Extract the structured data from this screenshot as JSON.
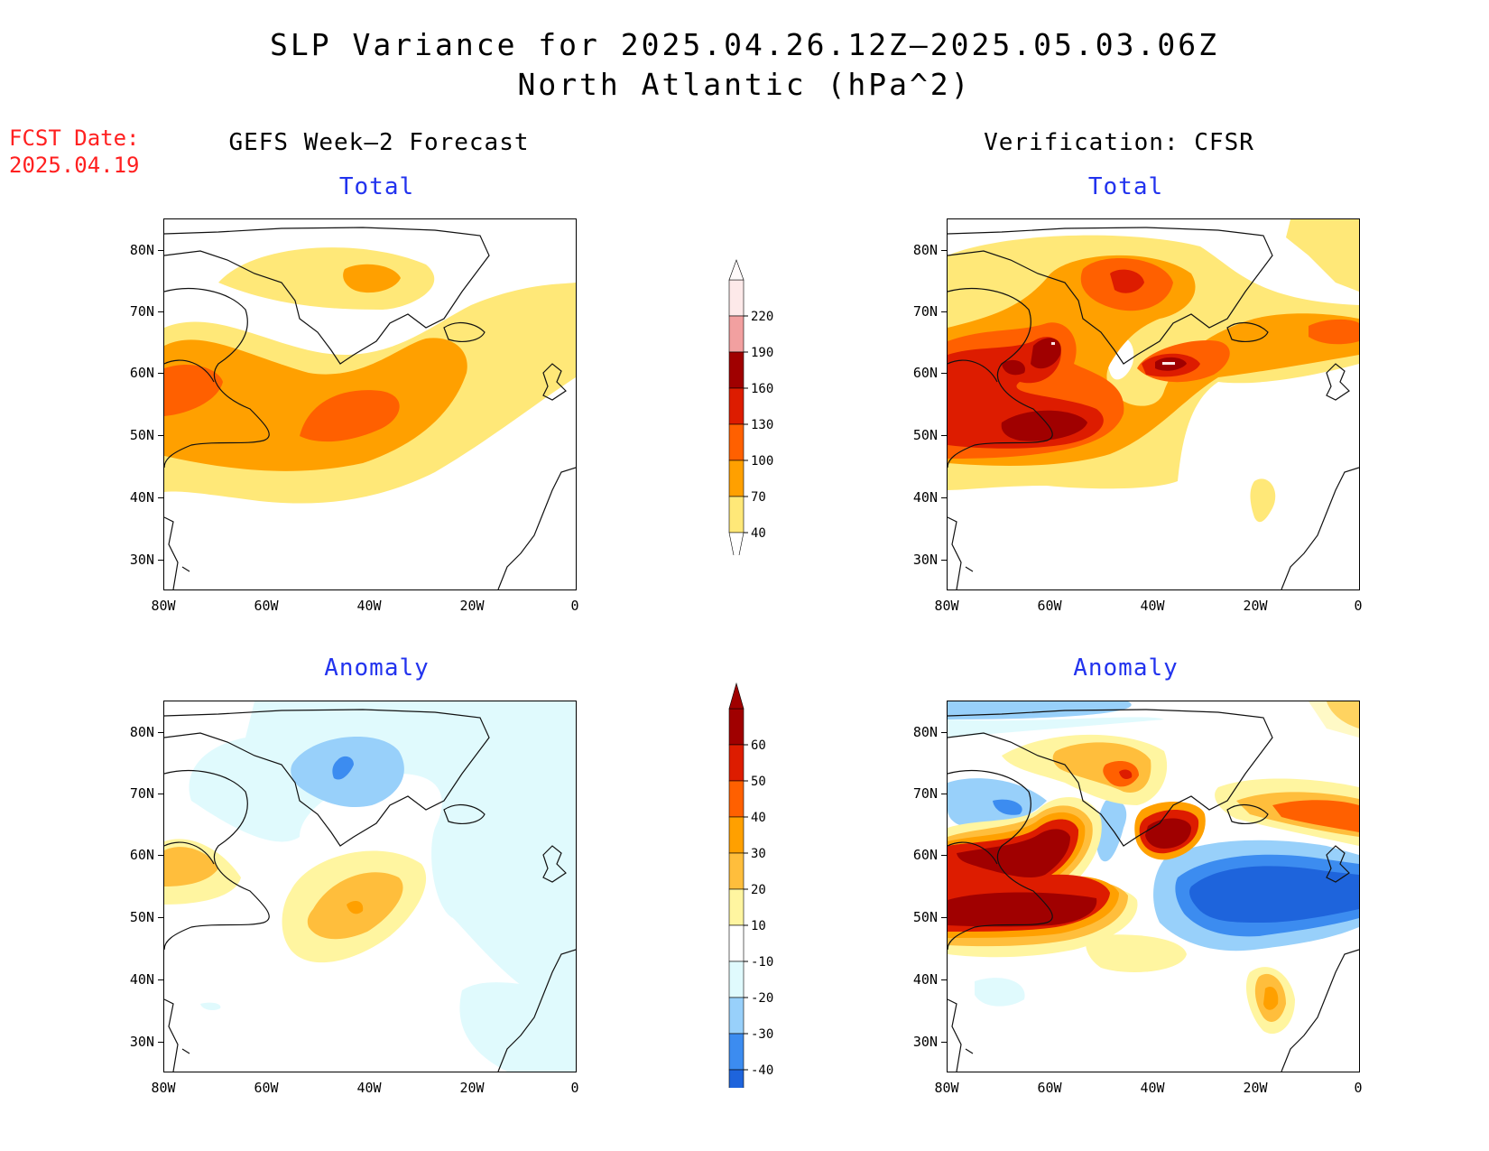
{
  "title": {
    "line1": "SLP Variance for 2025.04.26.12Z–2025.05.03.06Z",
    "line2": "North Atlantic (hPa^2)"
  },
  "forecast_date": {
    "label": "FCST Date:",
    "value": "2025.04.19"
  },
  "columns": {
    "left": "GEFS Week–2 Forecast",
    "right": "Verification: CFSR"
  },
  "panels": {
    "top_left": "Total",
    "top_right": "Total",
    "bottom_left": "Anomaly",
    "bottom_right": "Anomaly"
  },
  "axes": {
    "lat_labels": [
      "80N",
      "70N",
      "60N",
      "50N",
      "40N",
      "30N"
    ],
    "lon_labels": [
      "80W",
      "60W",
      "40W",
      "20W",
      "0"
    ]
  },
  "colorbars": {
    "total": {
      "levels": [
        "220",
        "190",
        "160",
        "130",
        "100",
        "70",
        "40"
      ],
      "colors": [
        "#fde9e9",
        "#f2a0a0",
        "#a00000",
        "#dd1c00",
        "#ff6000",
        "#ffa000",
        "#ffe878"
      ]
    },
    "anomaly": {
      "levels": [
        "60",
        "50",
        "40",
        "30",
        "20",
        "10",
        "-10",
        "-20",
        "-30",
        "-40"
      ],
      "colors": [
        "#a00000",
        "#dd1c00",
        "#ff6000",
        "#ffa000",
        "#ffbe3c",
        "#fff5a0",
        "#ffffff",
        "#e0fafd",
        "#98d0fa",
        "#3c8cf0",
        "#1e64dc"
      ]
    }
  },
  "colors": {
    "title_red": "#ff2020",
    "panel_blue": "#2233ee"
  }
}
